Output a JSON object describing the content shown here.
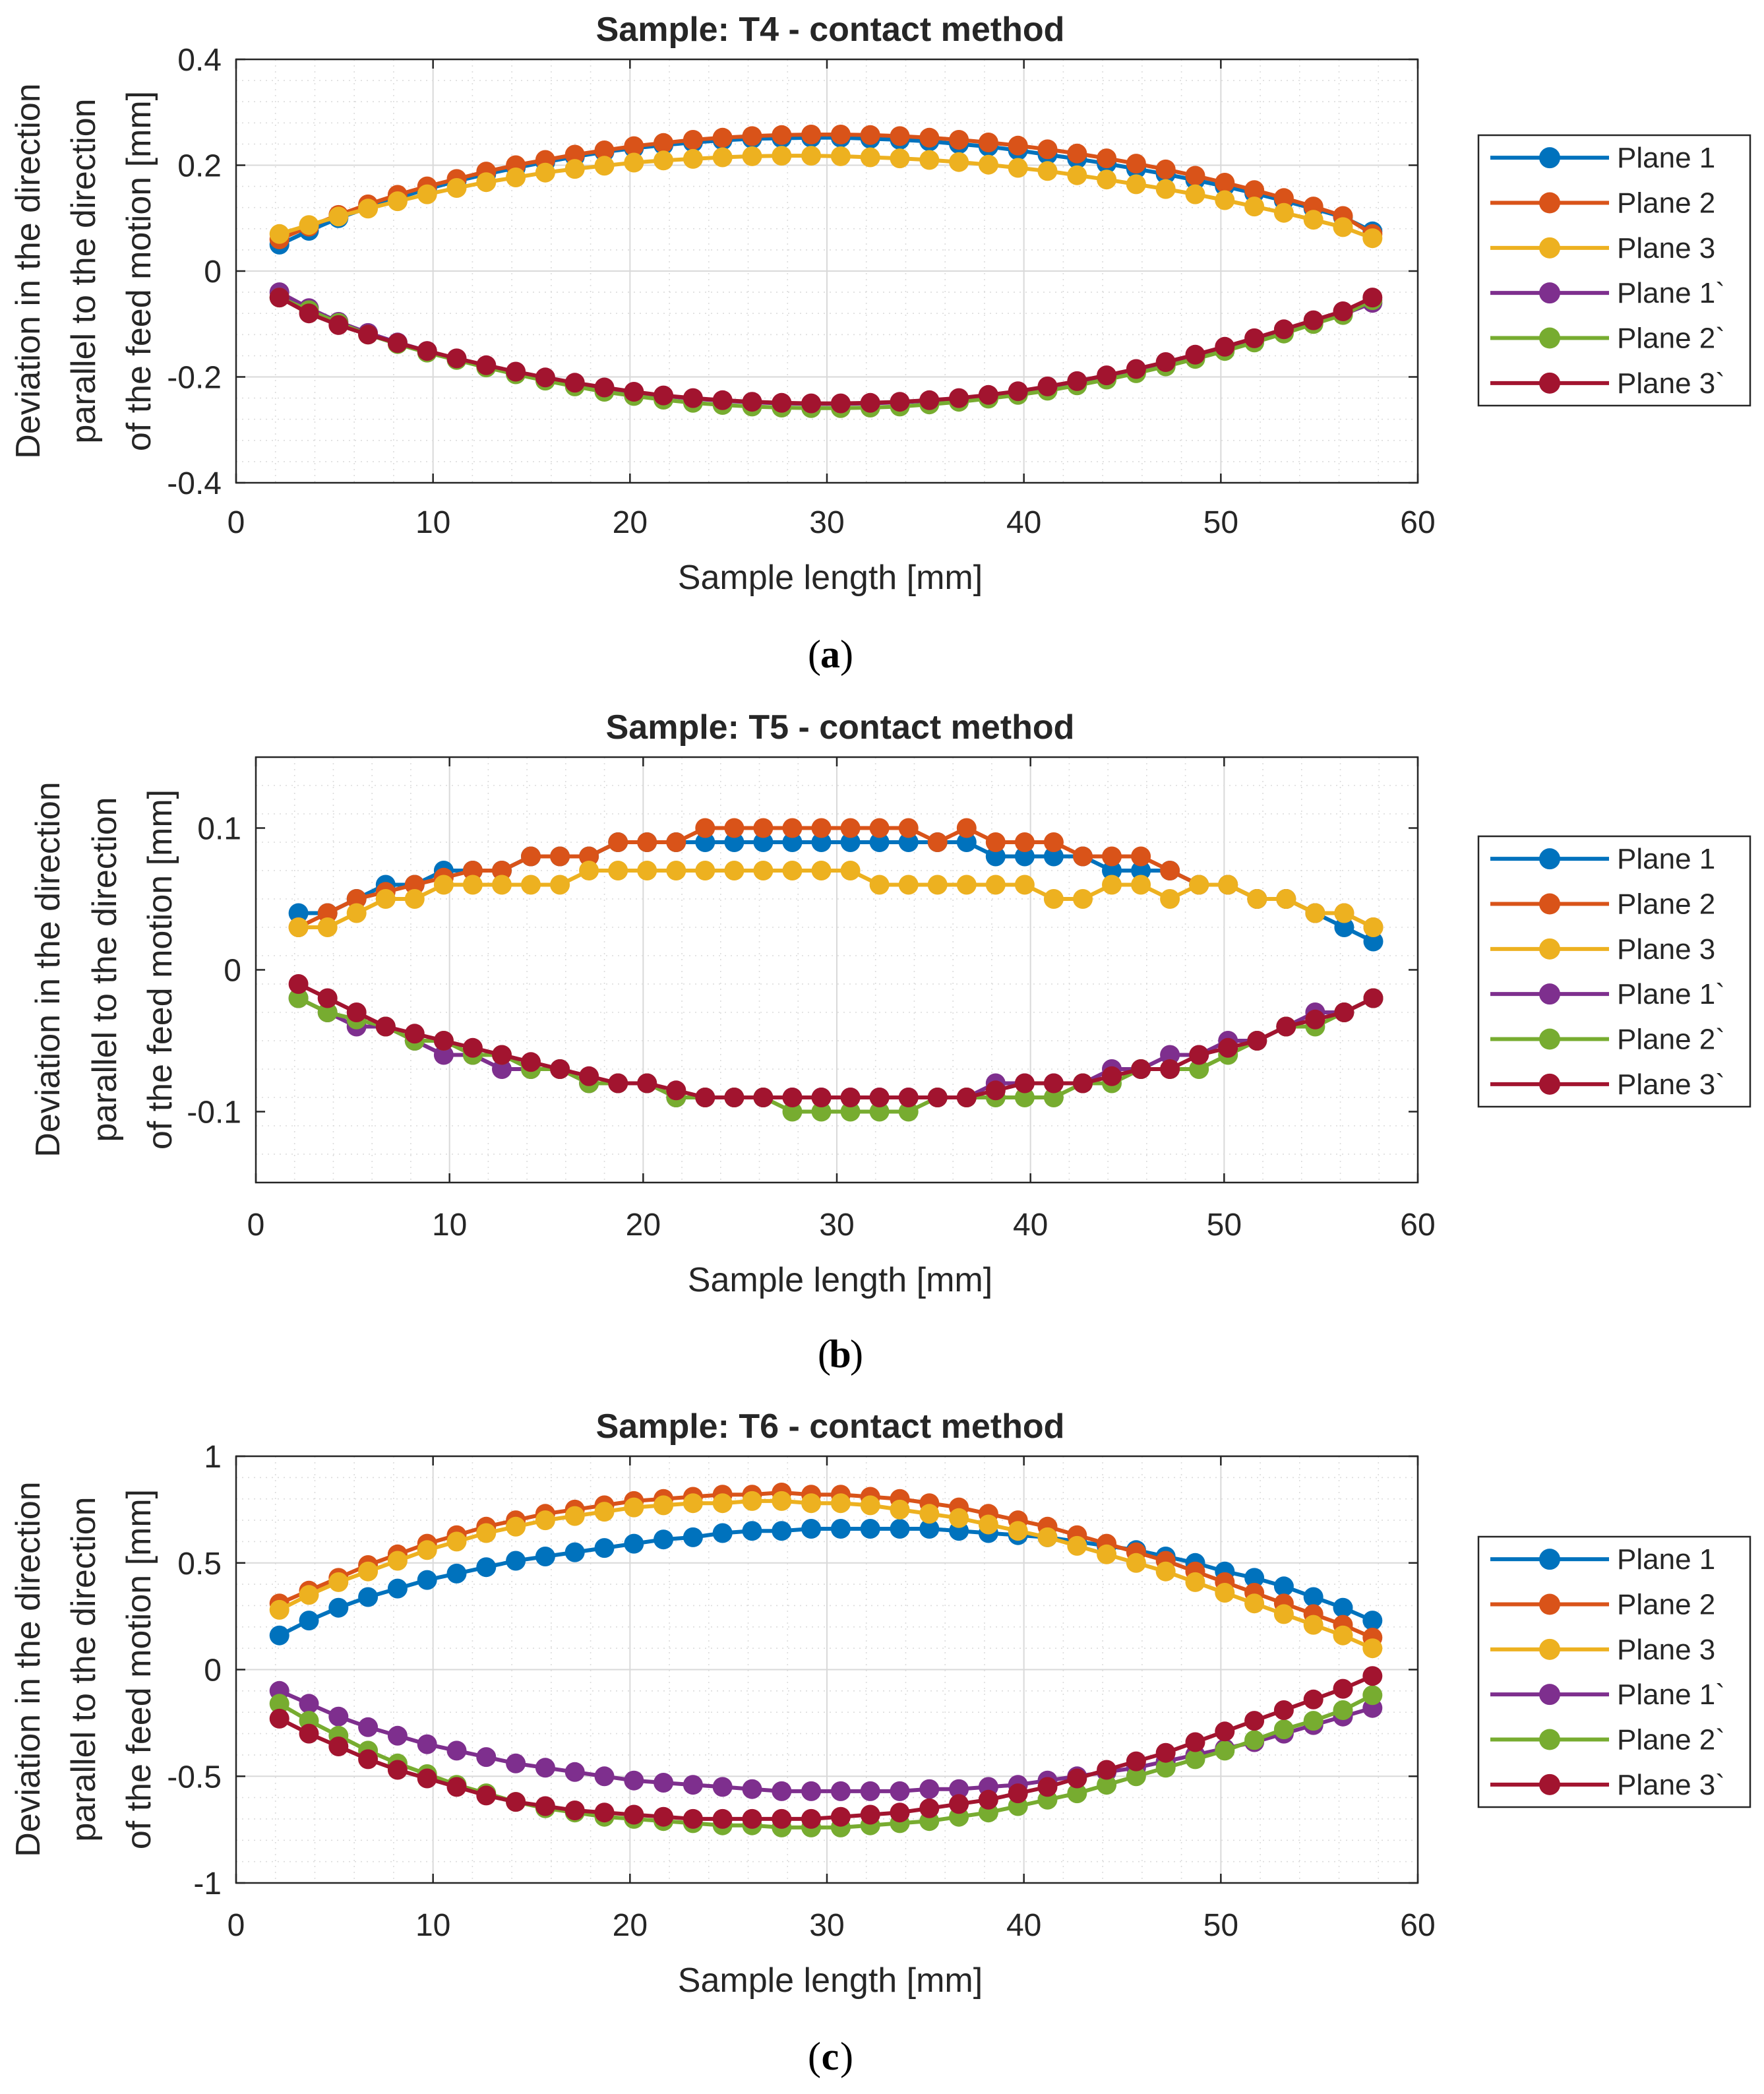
{
  "chart_data": [
    {
      "type": "line",
      "title": "Sample: T4 - contact method",
      "caption_letter": "a",
      "xlabel": "Sample length [mm]",
      "ylabel_lines": [
        "Deviation in the direction",
        "parallel to the direction",
        "of the feed motion [mm]"
      ],
      "xlim": [
        0,
        60
      ],
      "ylim": [
        -0.4,
        0.4
      ],
      "xticks": [
        0,
        10,
        20,
        30,
        40,
        50,
        60
      ],
      "xtick_labels": [
        "0",
        "10",
        "20",
        "30",
        "40",
        "50",
        "60"
      ],
      "yticks": [
        -0.4,
        -0.2,
        0,
        0.2,
        0.4
      ],
      "ytick_labels": [
        "-0.4",
        "-0.2",
        "0",
        "0.2",
        "0.4"
      ],
      "grid": true,
      "legend_position": "outside-right",
      "x": [
        2.2,
        3.7,
        5.2,
        6.7,
        8.2,
        9.7,
        11.2,
        12.7,
        14.2,
        15.7,
        17.2,
        18.7,
        20.2,
        21.7,
        23.2,
        24.7,
        26.2,
        27.7,
        29.2,
        30.7,
        32.2,
        33.7,
        35.2,
        36.7,
        38.2,
        39.7,
        41.2,
        42.7,
        44.2,
        45.7,
        47.2,
        48.7,
        50.2,
        51.7,
        53.2,
        54.7,
        56.2,
        57.7
      ],
      "series": [
        {
          "name": "Plane 1",
          "color": "#0072BD",
          "values": [
            0.05,
            0.076,
            0.1,
            0.12,
            0.138,
            0.155,
            0.17,
            0.183,
            0.195,
            0.206,
            0.216,
            0.225,
            0.232,
            0.238,
            0.243,
            0.247,
            0.25,
            0.251,
            0.252,
            0.252,
            0.25,
            0.248,
            0.245,
            0.24,
            0.235,
            0.228,
            0.22,
            0.212,
            0.203,
            0.193,
            0.183,
            0.172,
            0.16,
            0.147,
            0.133,
            0.118,
            0.102,
            0.075
          ]
        },
        {
          "name": "Plane 2",
          "color": "#D95319",
          "values": [
            0.06,
            0.084,
            0.106,
            0.126,
            0.144,
            0.16,
            0.174,
            0.188,
            0.2,
            0.21,
            0.22,
            0.228,
            0.236,
            0.242,
            0.248,
            0.252,
            0.255,
            0.257,
            0.258,
            0.258,
            0.257,
            0.255,
            0.252,
            0.248,
            0.243,
            0.237,
            0.23,
            0.222,
            0.213,
            0.203,
            0.192,
            0.18,
            0.167,
            0.153,
            0.138,
            0.122,
            0.104,
            0.07
          ]
        },
        {
          "name": "Plane 3",
          "color": "#EDB120",
          "values": [
            0.07,
            0.087,
            0.103,
            0.118,
            0.132,
            0.145,
            0.157,
            0.168,
            0.177,
            0.186,
            0.193,
            0.199,
            0.205,
            0.209,
            0.212,
            0.215,
            0.217,
            0.218,
            0.218,
            0.217,
            0.215,
            0.213,
            0.21,
            0.206,
            0.201,
            0.195,
            0.189,
            0.181,
            0.173,
            0.164,
            0.155,
            0.145,
            0.134,
            0.122,
            0.11,
            0.097,
            0.083,
            0.062
          ]
        },
        {
          "name": "Plane 1`",
          "color": "#7E2F8E",
          "values": [
            -0.04,
            -0.07,
            -0.096,
            -0.117,
            -0.135,
            -0.151,
            -0.166,
            -0.18,
            -0.192,
            -0.203,
            -0.213,
            -0.222,
            -0.23,
            -0.236,
            -0.241,
            -0.245,
            -0.248,
            -0.25,
            -0.251,
            -0.251,
            -0.25,
            -0.248,
            -0.245,
            -0.241,
            -0.236,
            -0.23,
            -0.222,
            -0.213,
            -0.203,
            -0.191,
            -0.178,
            -0.163,
            -0.148,
            -0.132,
            -0.115,
            -0.098,
            -0.082,
            -0.06
          ]
        },
        {
          "name": "Plane 2`",
          "color": "#77AC30",
          "values": [
            -0.05,
            -0.074,
            -0.098,
            -0.12,
            -0.138,
            -0.154,
            -0.168,
            -0.182,
            -0.195,
            -0.207,
            -0.218,
            -0.228,
            -0.236,
            -0.243,
            -0.249,
            -0.253,
            -0.256,
            -0.258,
            -0.259,
            -0.259,
            -0.258,
            -0.256,
            -0.252,
            -0.247,
            -0.241,
            -0.234,
            -0.226,
            -0.216,
            -0.205,
            -0.193,
            -0.18,
            -0.166,
            -0.151,
            -0.135,
            -0.118,
            -0.1,
            -0.083,
            -0.055
          ]
        },
        {
          "name": "Plane 3`",
          "color": "#A2142F",
          "values": [
            -0.05,
            -0.08,
            -0.102,
            -0.12,
            -0.136,
            -0.151,
            -0.165,
            -0.178,
            -0.19,
            -0.201,
            -0.211,
            -0.22,
            -0.228,
            -0.235,
            -0.24,
            -0.244,
            -0.247,
            -0.249,
            -0.25,
            -0.25,
            -0.249,
            -0.247,
            -0.244,
            -0.24,
            -0.234,
            -0.227,
            -0.218,
            -0.208,
            -0.197,
            -0.185,
            -0.172,
            -0.158,
            -0.143,
            -0.127,
            -0.11,
            -0.093,
            -0.076,
            -0.05
          ]
        }
      ]
    },
    {
      "type": "line",
      "title": "Sample: T5 - contact method",
      "caption_letter": "b",
      "xlabel": "Sample length [mm]",
      "ylabel_lines": [
        "Deviation in the direction",
        "parallel to the direction",
        "of the feed motion [mm]"
      ],
      "xlim": [
        0,
        60
      ],
      "ylim": [
        -0.15,
        0.15
      ],
      "xticks": [
        0,
        10,
        20,
        30,
        40,
        50,
        60
      ],
      "xtick_labels": [
        "0",
        "10",
        "20",
        "30",
        "40",
        "50",
        "60"
      ],
      "yticks": [
        -0.1,
        0,
        0.1
      ],
      "ytick_labels": [
        "-0.1",
        "0",
        "0.1"
      ],
      "grid": true,
      "legend_position": "outside-right",
      "x": [
        2.2,
        3.7,
        5.2,
        6.7,
        8.2,
        9.7,
        11.2,
        12.7,
        14.2,
        15.7,
        17.2,
        18.7,
        20.2,
        21.7,
        23.2,
        24.7,
        26.2,
        27.7,
        29.2,
        30.7,
        32.2,
        33.7,
        35.2,
        36.7,
        38.2,
        39.7,
        41.2,
        42.7,
        44.2,
        45.7,
        47.2,
        48.7,
        50.2,
        51.7,
        53.2,
        54.7,
        56.2,
        57.7
      ],
      "series": [
        {
          "name": "Plane 1",
          "color": "#0072BD",
          "values": [
            0.04,
            0.04,
            0.05,
            0.06,
            0.06,
            0.07,
            0.07,
            0.07,
            0.08,
            0.08,
            0.08,
            0.09,
            0.09,
            0.09,
            0.09,
            0.09,
            0.09,
            0.09,
            0.09,
            0.09,
            0.09,
            0.09,
            0.09,
            0.09,
            0.08,
            0.08,
            0.08,
            0.08,
            0.07,
            0.07,
            0.07,
            0.06,
            0.06,
            0.05,
            0.05,
            0.04,
            0.03,
            0.02
          ]
        },
        {
          "name": "Plane 2",
          "color": "#D95319",
          "values": [
            0.03,
            0.04,
            0.05,
            0.055,
            0.06,
            0.065,
            0.07,
            0.07,
            0.08,
            0.08,
            0.08,
            0.09,
            0.09,
            0.09,
            0.1,
            0.1,
            0.1,
            0.1,
            0.1,
            0.1,
            0.1,
            0.1,
            0.09,
            0.1,
            0.09,
            0.09,
            0.09,
            0.08,
            0.08,
            0.08,
            0.07,
            0.06,
            0.06,
            0.05,
            0.05,
            0.04,
            0.04,
            0.03
          ]
        },
        {
          "name": "Plane 3",
          "color": "#EDB120",
          "values": [
            0.03,
            0.03,
            0.04,
            0.05,
            0.05,
            0.06,
            0.06,
            0.06,
            0.06,
            0.06,
            0.07,
            0.07,
            0.07,
            0.07,
            0.07,
            0.07,
            0.07,
            0.07,
            0.07,
            0.07,
            0.06,
            0.06,
            0.06,
            0.06,
            0.06,
            0.06,
            0.05,
            0.05,
            0.06,
            0.06,
            0.05,
            0.06,
            0.06,
            0.05,
            0.05,
            0.04,
            0.04,
            0.03
          ]
        },
        {
          "name": "Plane 1`",
          "color": "#7E2F8E",
          "values": [
            -0.02,
            -0.03,
            -0.04,
            -0.04,
            -0.05,
            -0.06,
            -0.06,
            -0.07,
            -0.07,
            -0.07,
            -0.08,
            -0.08,
            -0.08,
            -0.09,
            -0.09,
            -0.09,
            -0.09,
            -0.09,
            -0.09,
            -0.09,
            -0.09,
            -0.09,
            -0.09,
            -0.09,
            -0.08,
            -0.08,
            -0.08,
            -0.08,
            -0.07,
            -0.07,
            -0.06,
            -0.06,
            -0.05,
            -0.05,
            -0.04,
            -0.03,
            -0.03,
            -0.02
          ]
        },
        {
          "name": "Plane 2`",
          "color": "#77AC30",
          "values": [
            -0.02,
            -0.03,
            -0.035,
            -0.04,
            -0.05,
            -0.05,
            -0.06,
            -0.06,
            -0.07,
            -0.07,
            -0.08,
            -0.08,
            -0.08,
            -0.09,
            -0.09,
            -0.09,
            -0.09,
            -0.1,
            -0.1,
            -0.1,
            -0.1,
            -0.1,
            -0.09,
            -0.09,
            -0.09,
            -0.09,
            -0.09,
            -0.08,
            -0.08,
            -0.07,
            -0.07,
            -0.07,
            -0.06,
            -0.05,
            -0.04,
            -0.04,
            -0.03,
            -0.02
          ]
        },
        {
          "name": "Plane 3`",
          "color": "#A2142F",
          "values": [
            -0.01,
            -0.02,
            -0.03,
            -0.04,
            -0.045,
            -0.05,
            -0.055,
            -0.06,
            -0.065,
            -0.07,
            -0.075,
            -0.08,
            -0.08,
            -0.085,
            -0.09,
            -0.09,
            -0.09,
            -0.09,
            -0.09,
            -0.09,
            -0.09,
            -0.09,
            -0.09,
            -0.09,
            -0.085,
            -0.08,
            -0.08,
            -0.08,
            -0.075,
            -0.07,
            -0.07,
            -0.06,
            -0.055,
            -0.05,
            -0.04,
            -0.035,
            -0.03,
            -0.02
          ]
        }
      ]
    },
    {
      "type": "line",
      "title": "Sample: T6 - contact method",
      "caption_letter": "c",
      "xlabel": "Sample length [mm]",
      "ylabel_lines": [
        "Deviation in the direction",
        "parallel to the direction",
        "of the feed motion [mm]"
      ],
      "xlim": [
        0,
        60
      ],
      "ylim": [
        -1,
        1
      ],
      "xticks": [
        0,
        10,
        20,
        30,
        40,
        50,
        60
      ],
      "xtick_labels": [
        "0",
        "10",
        "20",
        "30",
        "40",
        "50",
        "60"
      ],
      "yticks": [
        -1,
        -0.5,
        0,
        0.5,
        1
      ],
      "ytick_labels": [
        "-1",
        "-0.5",
        "0",
        "0.5",
        "1"
      ],
      "grid": true,
      "legend_position": "outside-right",
      "x": [
        2.2,
        3.7,
        5.2,
        6.7,
        8.2,
        9.7,
        11.2,
        12.7,
        14.2,
        15.7,
        17.2,
        18.7,
        20.2,
        21.7,
        23.2,
        24.7,
        26.2,
        27.7,
        29.2,
        30.7,
        32.2,
        33.7,
        35.2,
        36.7,
        38.2,
        39.7,
        41.2,
        42.7,
        44.2,
        45.7,
        47.2,
        48.7,
        50.2,
        51.7,
        53.2,
        54.7,
        56.2,
        57.7
      ],
      "series": [
        {
          "name": "Plane 1",
          "color": "#0072BD",
          "values": [
            0.16,
            0.23,
            0.29,
            0.34,
            0.38,
            0.42,
            0.45,
            0.48,
            0.51,
            0.53,
            0.55,
            0.57,
            0.59,
            0.61,
            0.62,
            0.64,
            0.65,
            0.65,
            0.66,
            0.66,
            0.66,
            0.66,
            0.66,
            0.65,
            0.64,
            0.63,
            0.62,
            0.6,
            0.58,
            0.56,
            0.53,
            0.5,
            0.46,
            0.43,
            0.39,
            0.34,
            0.29,
            0.23
          ]
        },
        {
          "name": "Plane 2",
          "color": "#D95319",
          "values": [
            0.31,
            0.37,
            0.43,
            0.49,
            0.54,
            0.59,
            0.63,
            0.67,
            0.7,
            0.73,
            0.75,
            0.77,
            0.79,
            0.8,
            0.81,
            0.82,
            0.82,
            0.83,
            0.82,
            0.82,
            0.81,
            0.8,
            0.78,
            0.76,
            0.73,
            0.7,
            0.67,
            0.63,
            0.59,
            0.55,
            0.51,
            0.46,
            0.41,
            0.36,
            0.31,
            0.26,
            0.21,
            0.15
          ]
        },
        {
          "name": "Plane 3",
          "color": "#EDB120",
          "values": [
            0.28,
            0.35,
            0.41,
            0.46,
            0.51,
            0.56,
            0.6,
            0.64,
            0.67,
            0.7,
            0.72,
            0.74,
            0.76,
            0.77,
            0.78,
            0.78,
            0.79,
            0.79,
            0.78,
            0.78,
            0.77,
            0.75,
            0.73,
            0.71,
            0.68,
            0.65,
            0.62,
            0.58,
            0.54,
            0.5,
            0.46,
            0.41,
            0.36,
            0.31,
            0.26,
            0.21,
            0.16,
            0.1
          ]
        },
        {
          "name": "Plane 1`",
          "color": "#7E2F8E",
          "values": [
            -0.1,
            -0.16,
            -0.22,
            -0.27,
            -0.31,
            -0.35,
            -0.38,
            -0.41,
            -0.44,
            -0.46,
            -0.48,
            -0.5,
            -0.52,
            -0.53,
            -0.54,
            -0.55,
            -0.56,
            -0.57,
            -0.57,
            -0.57,
            -0.57,
            -0.57,
            -0.56,
            -0.56,
            -0.55,
            -0.54,
            -0.52,
            -0.5,
            -0.48,
            -0.46,
            -0.43,
            -0.4,
            -0.37,
            -0.34,
            -0.3,
            -0.26,
            -0.22,
            -0.18
          ]
        },
        {
          "name": "Plane 2`",
          "color": "#77AC30",
          "values": [
            -0.16,
            -0.24,
            -0.31,
            -0.38,
            -0.44,
            -0.49,
            -0.54,
            -0.58,
            -0.62,
            -0.65,
            -0.67,
            -0.69,
            -0.7,
            -0.71,
            -0.72,
            -0.73,
            -0.73,
            -0.74,
            -0.74,
            -0.74,
            -0.73,
            -0.72,
            -0.71,
            -0.69,
            -0.67,
            -0.64,
            -0.61,
            -0.58,
            -0.54,
            -0.5,
            -0.46,
            -0.42,
            -0.38,
            -0.33,
            -0.28,
            -0.24,
            -0.19,
            -0.12
          ]
        },
        {
          "name": "Plane 3`",
          "color": "#A2142F",
          "values": [
            -0.23,
            -0.3,
            -0.36,
            -0.42,
            -0.47,
            -0.51,
            -0.55,
            -0.59,
            -0.62,
            -0.64,
            -0.66,
            -0.67,
            -0.68,
            -0.69,
            -0.7,
            -0.7,
            -0.7,
            -0.7,
            -0.7,
            -0.69,
            -0.68,
            -0.67,
            -0.65,
            -0.63,
            -0.61,
            -0.58,
            -0.55,
            -0.51,
            -0.47,
            -0.43,
            -0.39,
            -0.34,
            -0.29,
            -0.24,
            -0.19,
            -0.14,
            -0.09,
            -0.03
          ]
        }
      ]
    }
  ]
}
